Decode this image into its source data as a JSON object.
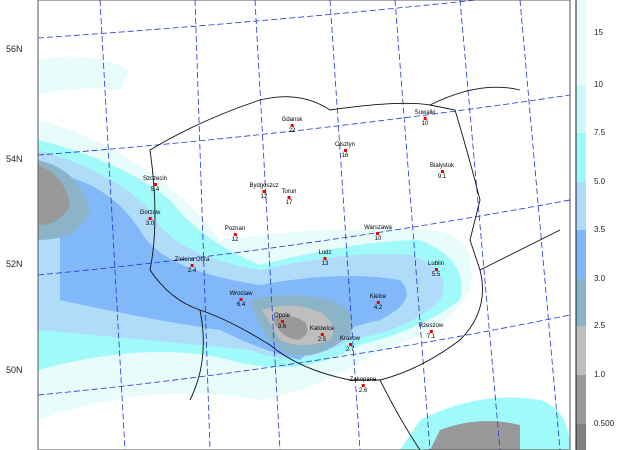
{
  "latitude_labels": [
    "56N",
    "54N",
    "52N",
    "50N"
  ],
  "legend": {
    "labels": [
      "15",
      "10",
      "7.5",
      "5.0",
      "3.5",
      "3.0",
      "2.5",
      "1.0",
      "0.500"
    ],
    "colors": [
      "#e8fcfc",
      "#ccfafa",
      "#a0fafa",
      "#b0dcfa",
      "#80b8fa",
      "#8cb4c8",
      "#bebebe",
      "#9a9a9a",
      "#808080"
    ]
  },
  "cities": [
    {
      "name": "Gdansk",
      "value": "22"
    },
    {
      "name": "Olsztyn",
      "value": "16"
    },
    {
      "name": "Suwalki",
      "value": "10"
    },
    {
      "name": "Bialystok",
      "value": "9.1"
    },
    {
      "name": "Szczecin",
      "value": "5.4"
    },
    {
      "name": "Gorzow",
      "value": "3.0"
    },
    {
      "name": "Bydgoszcz",
      "value": "12"
    },
    {
      "name": "Torun",
      "value": "17"
    },
    {
      "name": "Poznan",
      "value": "12"
    },
    {
      "name": "Warszawa",
      "value": "10"
    },
    {
      "name": "Zielona Gora",
      "value": "2.4"
    },
    {
      "name": "Lodz",
      "value": "13"
    },
    {
      "name": "Lublin",
      "value": "5.5"
    },
    {
      "name": "Wroclaw",
      "value": "6.4"
    },
    {
      "name": "Kielce",
      "value": "4.2"
    },
    {
      "name": "Opole",
      "value": "3.6"
    },
    {
      "name": "Katowice",
      "value": "2.5"
    },
    {
      "name": "Krakow",
      "value": "2.7"
    },
    {
      "name": "Rzeszow",
      "value": "7.1"
    },
    {
      "name": "Zakopane",
      "value": "2.6"
    }
  ]
}
